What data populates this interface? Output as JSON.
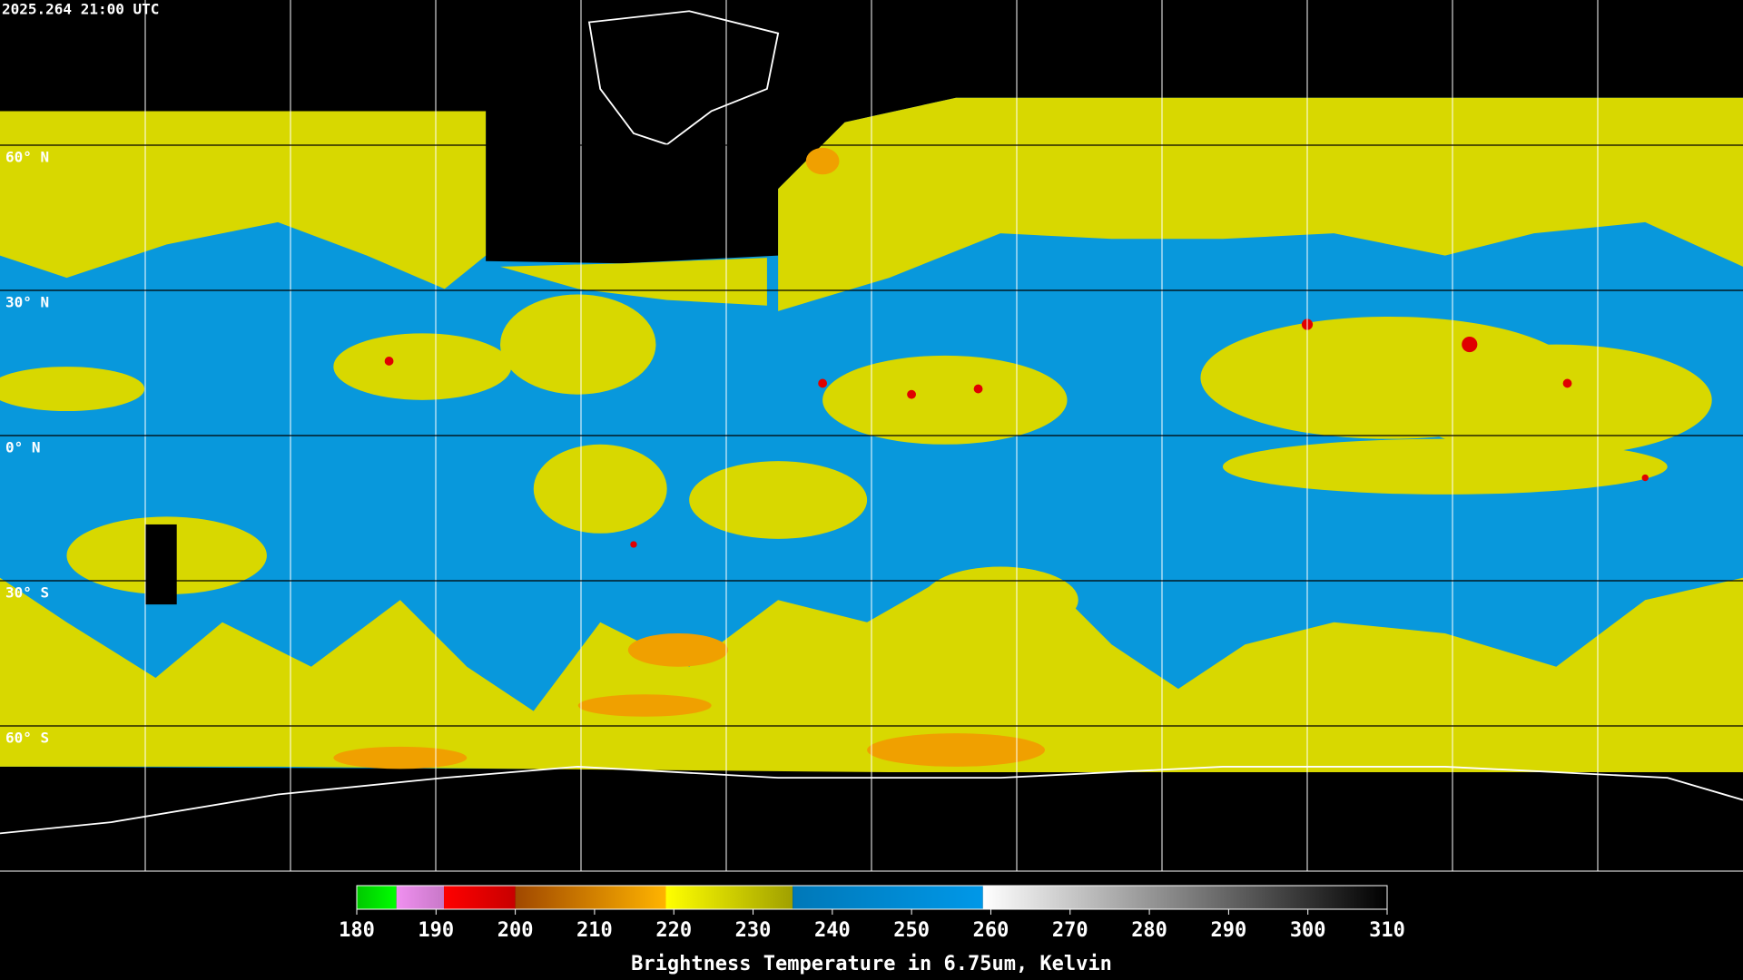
{
  "header": {
    "timestamp": "2025.264 21:00 UTC"
  },
  "map": {
    "lat_ticks": [
      {
        "value": 60,
        "label": "60° N"
      },
      {
        "value": 30,
        "label": "30° N"
      },
      {
        "value": 0,
        "label": "0° N"
      },
      {
        "value": -30,
        "label": "30° S"
      },
      {
        "value": -60,
        "label": "60° S"
      }
    ],
    "latlim": [
      90,
      -90
    ]
  },
  "colorbar": {
    "label": "Brightness Temperature in 6.75um, Kelvin",
    "lim": [
      180,
      310
    ],
    "ticks": [
      180,
      190,
      200,
      210,
      220,
      230,
      240,
      250,
      260,
      270,
      280,
      290,
      300,
      310
    ],
    "segments": [
      {
        "from": 180,
        "to": 185,
        "colors": [
          "#00c800",
          "#00ff00"
        ]
      },
      {
        "from": 185,
        "to": 191,
        "colors": [
          "#f090f0",
          "#c878c8"
        ]
      },
      {
        "from": 191,
        "to": 200,
        "colors": [
          "#ff0000",
          "#c80000"
        ]
      },
      {
        "from": 200,
        "to": 219,
        "colors": [
          "#a04800",
          "#ffb400"
        ]
      },
      {
        "from": 219,
        "to": 235,
        "colors": [
          "#ffff00",
          "#a0a000"
        ]
      },
      {
        "from": 235,
        "to": 259,
        "colors": [
          "#0078b8",
          "#0098e8"
        ]
      },
      {
        "from": 259,
        "to": 310,
        "colors": [
          "#ffffff",
          "#000000"
        ]
      }
    ]
  }
}
